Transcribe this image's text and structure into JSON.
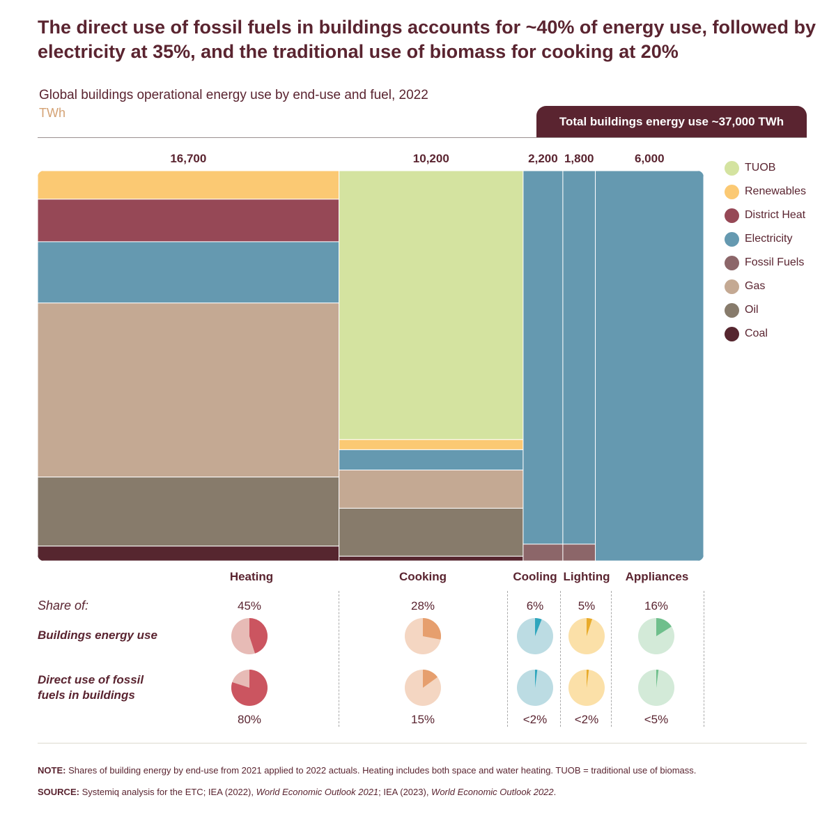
{
  "headline": "The direct use of fossil fuels in buildings accounts for ~40% of energy use, followed by electricity at 35%, and the traditional use of biomass for cooking at 20%",
  "subtitle": "Global buildings operational energy use by end-use and fuel, 2022",
  "unit": "TWh",
  "total_label": "Total buildings energy use ~37,000 TWh",
  "colors": {
    "TUOB": "#d4e3a0",
    "Renewables": "#fbc973",
    "District Heat": "#964856",
    "Electricity": "#6599b0",
    "Fossil Fuels": "#8c6669",
    "Gas": "#c4a993",
    "Oil": "#877b6b",
    "Coal": "#56262f"
  },
  "legend": [
    "TUOB",
    "Renewables",
    "District Heat",
    "Electricity",
    "Fossil Fuels",
    "Gas",
    "Oil",
    "Coal"
  ],
  "chart_data": {
    "type": "mekko",
    "title": "Global buildings operational energy use by end-use and fuel, 2022",
    "unit": "TWh",
    "categories": [
      {
        "name": "Heating",
        "total": 16700,
        "segments": [
          {
            "fuel": "Renewables",
            "share": 0.073
          },
          {
            "fuel": "District Heat",
            "share": 0.109
          },
          {
            "fuel": "Electricity",
            "share": 0.157
          },
          {
            "fuel": "Gas",
            "share": 0.446
          },
          {
            "fuel": "Oil",
            "share": 0.177
          },
          {
            "fuel": "Coal",
            "share": 0.038
          }
        ]
      },
      {
        "name": "Cooking",
        "total": 10200,
        "segments": [
          {
            "fuel": "TUOB",
            "share": 0.689
          },
          {
            "fuel": "Renewables",
            "share": 0.026
          },
          {
            "fuel": "Electricity",
            "share": 0.052
          },
          {
            "fuel": "Gas",
            "share": 0.098
          },
          {
            "fuel": "Oil",
            "share": 0.123
          },
          {
            "fuel": "Coal",
            "share": 0.012
          }
        ]
      },
      {
        "name": "Cooling",
        "total": 2200,
        "segments": [
          {
            "fuel": "Electricity",
            "share": 0.957
          },
          {
            "fuel": "Fossil Fuels",
            "share": 0.043
          }
        ]
      },
      {
        "name": "Lighting",
        "total": 1800,
        "segments": [
          {
            "fuel": "Electricity",
            "share": 0.957
          },
          {
            "fuel": "Fossil Fuels",
            "share": 0.043
          }
        ]
      },
      {
        "name": "Appliances",
        "total": 6000,
        "segments": [
          {
            "fuel": "Electricity",
            "share": 1.0
          }
        ]
      }
    ]
  },
  "value_labels": [
    "16,700",
    "10,200",
    "2,200",
    "1,800",
    "6,000"
  ],
  "column_labels": [
    "Heating",
    "Cooking",
    "Cooling",
    "Lighting",
    "Appliances"
  ],
  "share_of_label": "Share of:",
  "row1_label": "Buildings energy use",
  "row2_label_line1": "Direct use of fossil",
  "row2_label_line2": "fuels in buildings",
  "shares": [
    {
      "end_use": "Heating",
      "energy_label": "45%",
      "energy_value": 0.45,
      "fossil_label": "80%",
      "fossil_value": 0.8,
      "light": "#e7bbb6",
      "dark": "#cb5560"
    },
    {
      "end_use": "Cooking",
      "energy_label": "28%",
      "energy_value": 0.28,
      "fossil_label": "15%",
      "fossil_value": 0.15,
      "light": "#f4d6c2",
      "dark": "#e69f6e"
    },
    {
      "end_use": "Cooling",
      "energy_label": "6%",
      "energy_value": 0.06,
      "fossil_label": "<2%",
      "fossil_value": 0.02,
      "light": "#bcdce3",
      "dark": "#2ea6bd"
    },
    {
      "end_use": "Lighting",
      "energy_label": "5%",
      "energy_value": 0.05,
      "fossil_label": "<2%",
      "fossil_value": 0.02,
      "light": "#fbe0a8",
      "dark": "#e9ab2a"
    },
    {
      "end_use": "Appliances",
      "energy_label": "16%",
      "energy_value": 0.16,
      "fossil_label": "<5%",
      "fossil_value": 0.02,
      "light": "#d3ead8",
      "dark": "#6fbf8c"
    }
  ],
  "note_label": "NOTE:",
  "note_text": "Shares of building energy by end-use from 2021 applied to 2022 actuals. Heating includes both space and water heating. TUOB = traditional use of biomass.",
  "source_label": "SOURCE:",
  "source_parts": [
    {
      "text": "Systemiq analysis for the ETC; IEA (2022), ",
      "italic": false
    },
    {
      "text": "World Economic Outlook 2021",
      "italic": true
    },
    {
      "text": "; IEA (2023), ",
      "italic": false
    },
    {
      "text": "World Economic Outlook 2022",
      "italic": true
    },
    {
      "text": ".",
      "italic": false
    }
  ]
}
